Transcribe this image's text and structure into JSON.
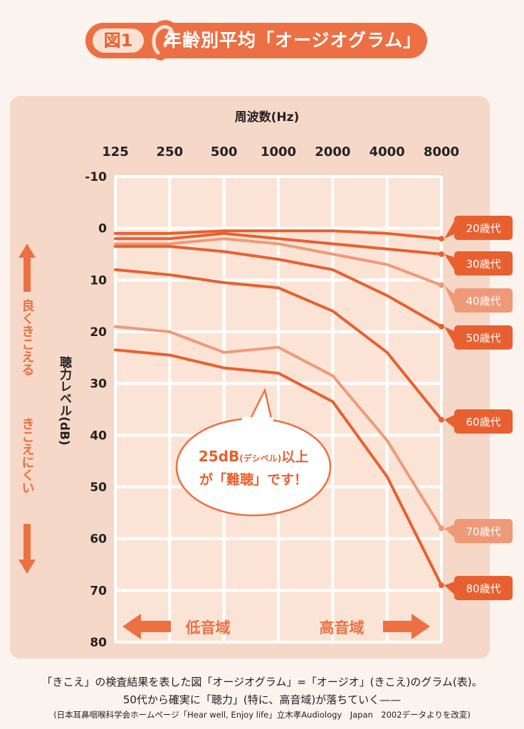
{
  "header": {
    "figure_label": "図1",
    "title": "年齢別平均「オージオグラム」"
  },
  "chart_data": {
    "type": "line",
    "title": "年齢別平均「オージオグラム」",
    "xlabel": "周波数(Hz)",
    "ylabel": "聴力レベル(dB)",
    "categories": [
      "125",
      "250",
      "500",
      "1000",
      "2000",
      "4000",
      "8000"
    ],
    "ylim": [
      -10,
      80
    ],
    "y_inverted": true,
    "yticks": [
      "-10",
      "0",
      "10",
      "20",
      "30",
      "40",
      "50",
      "60",
      "70",
      "80"
    ],
    "grid": true,
    "series": [
      {
        "name": "20歳代",
        "values": [
          1,
          1,
          0.5,
          0.5,
          0.5,
          1,
          2
        ],
        "color": "#e8602f"
      },
      {
        "name": "30歳代",
        "values": [
          2,
          2,
          1,
          2,
          3,
          4,
          5
        ],
        "color": "#e8602f"
      },
      {
        "name": "40歳代",
        "values": [
          3,
          3,
          2,
          3,
          5,
          7,
          11
        ],
        "color": "#ee9a78"
      },
      {
        "name": "50歳代",
        "values": [
          3.5,
          3.5,
          4.5,
          6,
          8,
          13,
          19
        ],
        "color": "#e8602f"
      },
      {
        "name": "60歳代",
        "values": [
          8,
          9,
          10.5,
          11.5,
          16,
          24,
          37
        ],
        "color": "#e8602f"
      },
      {
        "name": "70歳代",
        "values": [
          19,
          20,
          24,
          23,
          28.5,
          41,
          58
        ],
        "color": "#ee9a78"
      },
      {
        "name": "80歳代",
        "values": [
          23.5,
          24.5,
          27,
          28,
          33.5,
          48,
          69
        ],
        "color": "#e8602f"
      }
    ],
    "side_labels": {
      "up_text": "良くきこえる",
      "down_text": "きこえにくい"
    },
    "bubble": {
      "line1_big": "25dB",
      "line1_small": "(デシベル)",
      "line1_tail": "以上",
      "line2": "が「難聴」です！"
    },
    "bottom_arrows": {
      "low": "低音域",
      "high": "高音域"
    }
  },
  "caption": {
    "line1": "「きこえ」の検査結果を表した図「オージオグラム」=「オージオ」(きこえ)のグラム(表)。",
    "line2": "50代から確実に「聴力」(特に、高音域)が落ちていく——",
    "line3": "(日本耳鼻咽喉科学会ホームページ「Hear well, Enjoy life」立木孝Audiology　Japan　2002データよりを改変)"
  },
  "colors": {
    "accent": "#ec7043",
    "line_dark": "#e8602f",
    "line_light": "#ee9a78",
    "panel": "#f6d8c8",
    "plot": "#fbe4d6"
  }
}
